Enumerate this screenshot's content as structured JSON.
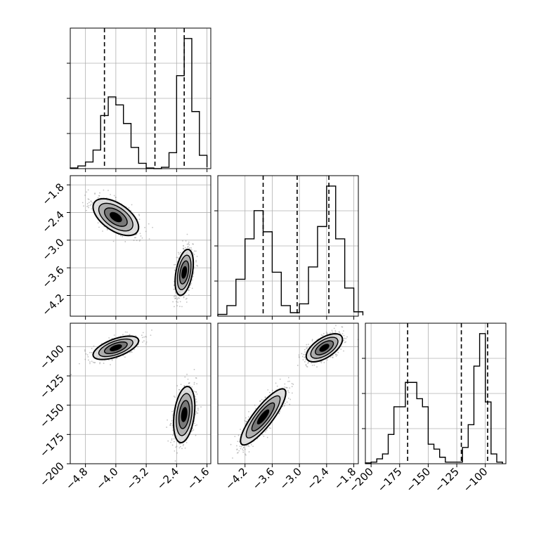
{
  "colors": {
    "histogram": "#000000",
    "contour": "#000000",
    "grid": "#b0b0b0",
    "points": "#888888",
    "fill_levels": [
      "#d9d9d9",
      "#a6a6a6",
      "#6e6e6e",
      "#000000"
    ]
  },
  "chart_data": [
    {
      "type": "histogram",
      "panel": "p1",
      "grid": true,
      "xlim": [
        -5.2,
        -1.5
      ],
      "bins": [
        -5.2,
        -5.0,
        -4.8,
        -4.6,
        -4.4,
        -4.2,
        -4.0,
        -3.8,
        -3.6,
        -3.4,
        -3.2,
        -3.0,
        -2.8,
        -2.6,
        -2.4,
        -2.2,
        -2.0,
        -1.8,
        -1.6
      ],
      "counts": [
        1,
        4,
        10,
        28,
        80,
        108,
        96,
        68,
        32,
        8,
        1,
        0,
        2,
        24,
        140,
        196,
        86,
        20,
        2
      ],
      "quantiles": [
        -4.3,
        -2.97,
        -2.2
      ],
      "xticks": [
        -4.8,
        -4.0,
        -3.2,
        -2.4,
        -1.6
      ],
      "xtick_labels": []
    },
    {
      "type": "scatter+contour",
      "panel": "p2",
      "grid": true,
      "xlim": [
        -5.2,
        -1.5
      ],
      "ylim": [
        -4.65,
        -1.6
      ],
      "clusters": [
        {
          "cx": -4.0,
          "cy": -2.5,
          "sx": 0.3,
          "sy": 0.2,
          "rho": -0.55
        },
        {
          "cx": -2.2,
          "cy": -3.7,
          "sx": 0.12,
          "sy": 0.25,
          "rho": 0.4
        }
      ],
      "yticks": [
        -1.8,
        -2.4,
        -3.0,
        -3.6,
        -4.2
      ],
      "ytick_labels": [
        "−1.8",
        "−2.4",
        "−3.0",
        "−3.6",
        "−4.2"
      ]
    },
    {
      "type": "histogram",
      "panel": "p3",
      "grid": true,
      "xlim": [
        -4.8,
        -1.7
      ],
      "bins": [
        -4.8,
        -4.6,
        -4.4,
        -4.2,
        -4.0,
        -3.8,
        -3.6,
        -3.4,
        -3.2,
        -3.0,
        -2.8,
        -2.6,
        -2.4,
        -2.2,
        -2.0,
        -1.8,
        -1.6
      ],
      "counts": [
        2,
        12,
        42,
        88,
        120,
        96,
        50,
        12,
        4,
        14,
        56,
        102,
        148,
        88,
        32,
        5,
        1
      ],
      "quantiles": [
        -3.8,
        -3.05,
        -2.35
      ],
      "xticks": [
        -4.2,
        -3.6,
        -3.0,
        -2.4,
        -1.8
      ],
      "xtick_labels": []
    },
    {
      "type": "scatter+contour",
      "panel": "p4",
      "grid": true,
      "xlim": [
        -5.2,
        -1.5
      ],
      "ylim": [
        -200,
        -80
      ],
      "clusters": [
        {
          "cx": -4.0,
          "cy": -101,
          "sx": 0.3,
          "sy": 5,
          "rho": 0.6
        },
        {
          "cx": -2.2,
          "cy": -158,
          "sx": 0.14,
          "sy": 12,
          "rho": 0.3
        }
      ],
      "xticks": [
        -4.8,
        -4.0,
        -3.2,
        -2.4,
        -1.6
      ],
      "xtick_labels": [
        "−4.8",
        "−4.0",
        "−3.2",
        "−2.4",
        "−1.6"
      ],
      "yticks": [
        -100,
        -125,
        -150,
        -175,
        -200
      ],
      "ytick_labels": [
        "−100",
        "−125",
        "−150",
        "−175",
        "−200"
      ]
    },
    {
      "type": "scatter+contour",
      "panel": "p5",
      "grid": true,
      "xlim": [
        -4.8,
        -1.7
      ],
      "ylim": [
        -200,
        -80
      ],
      "clusters": [
        {
          "cx": -2.45,
          "cy": -101,
          "sx": 0.2,
          "sy": 6,
          "rho": 0.6
        },
        {
          "cx": -3.8,
          "cy": -160,
          "sx": 0.25,
          "sy": 12,
          "rho": 0.85
        }
      ],
      "xticks": [
        -4.2,
        -3.6,
        -3.0,
        -2.4,
        -1.8
      ],
      "xtick_labels": [
        "−4.2",
        "−3.6",
        "−3.0",
        "−2.4",
        "−1.8"
      ]
    },
    {
      "type": "histogram",
      "panel": "p6",
      "grid": true,
      "xlim": [
        -205,
        -82
      ],
      "bins": [
        -205,
        -200,
        -195,
        -190,
        -185,
        -180,
        -175,
        -170,
        -165,
        -160,
        -155,
        -150,
        -145,
        -140,
        -135,
        -130,
        -125,
        -120,
        -115,
        -110,
        -105,
        -100,
        -95,
        -90,
        -85
      ],
      "counts": [
        1,
        2,
        6,
        12,
        36,
        70,
        70,
        100,
        100,
        80,
        70,
        24,
        18,
        8,
        2,
        2,
        2,
        20,
        48,
        120,
        160,
        76,
        12,
        2
      ],
      "quantiles": [
        -168,
        -121,
        -98
      ],
      "xticks": [
        -200,
        -175,
        -150,
        -125,
        -100
      ],
      "xtick_labels": [
        "−200",
        "−175",
        "−150",
        "−125",
        "−100"
      ]
    }
  ]
}
